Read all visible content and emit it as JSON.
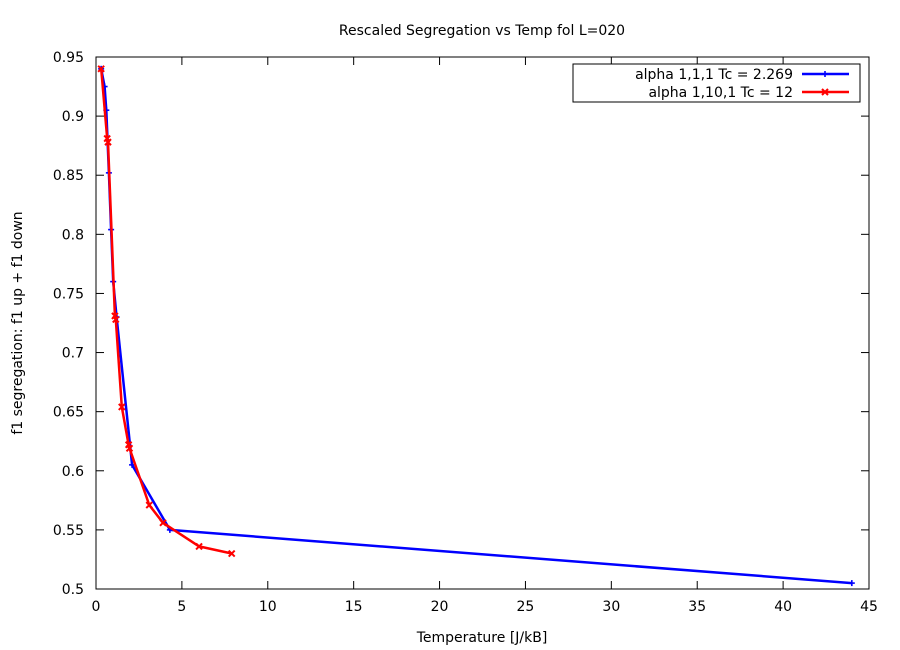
{
  "chart_data": {
    "type": "line",
    "title": "Rescaled Segregation vs Temp fol L=020",
    "xlabel": "Temperature [J/kB]",
    "ylabel": "f1 segregation: f1 up + f1 down",
    "xlim": [
      0,
      45
    ],
    "ylim": [
      0.5,
      0.95
    ],
    "x_ticks": [
      0,
      5,
      10,
      15,
      20,
      25,
      30,
      35,
      40,
      45
    ],
    "x_tick_labels": [
      "0",
      "5",
      "10",
      "15",
      "20",
      "25",
      "30",
      "35",
      "40",
      "45"
    ],
    "y_ticks": [
      0.5,
      0.55,
      0.6,
      0.65,
      0.7,
      0.75,
      0.8,
      0.85,
      0.9,
      0.95
    ],
    "y_tick_labels": [
      "0.5",
      "0.55",
      "0.6",
      "0.65",
      "0.7",
      "0.75",
      "0.8",
      "0.85",
      "0.9",
      "0.95"
    ],
    "grid": false,
    "legend_position": "top-right",
    "series": [
      {
        "name": "alpha 1,1,1 Tc = 2.269",
        "color": "#0000ff",
        "marker": "plus",
        "x": [
          0.3,
          0.5,
          0.6,
          0.75,
          0.88,
          1.0,
          1.2,
          2.1,
          4.3,
          44.0
        ],
        "y": [
          0.94,
          0.925,
          0.905,
          0.852,
          0.804,
          0.76,
          0.73,
          0.605,
          0.55,
          0.505
        ]
      },
      {
        "name": "alpha 1,10,1 Tc = 12",
        "color": "#ff0000",
        "marker": "cross",
        "x": [
          0.3,
          0.65,
          0.7,
          1.1,
          1.15,
          1.5,
          1.9,
          1.95,
          3.1,
          3.9,
          6.0,
          7.9
        ],
        "y": [
          0.94,
          0.881,
          0.878,
          0.731,
          0.728,
          0.654,
          0.622,
          0.619,
          0.571,
          0.556,
          0.536,
          0.53
        ]
      }
    ]
  }
}
